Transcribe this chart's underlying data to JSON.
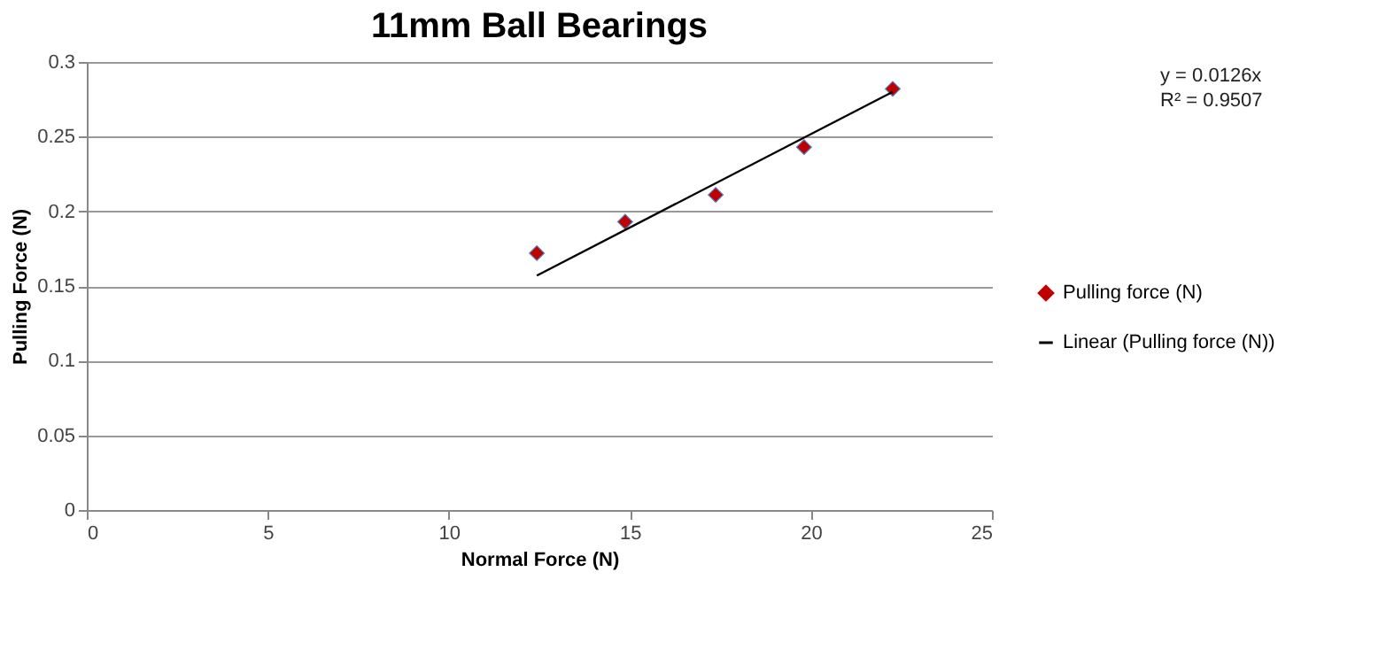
{
  "chart_data": {
    "type": "scatter",
    "title": "11mm Ball Bearings",
    "xlabel": "Normal Force (N)",
    "ylabel": "Pulling Force (N)",
    "series": [
      {
        "name": "Pulling force (N)",
        "color": "#c00000",
        "x": [
          12.43,
          14.87,
          17.37,
          19.81,
          22.26
        ],
        "values": [
          0.172,
          0.193,
          0.211,
          0.243,
          0.282
        ],
        "marker": "diamond"
      },
      {
        "name": "Linear (Pulling force (N))",
        "type": "line",
        "color": "#000000",
        "x": [
          12.43,
          22.26
        ],
        "values": [
          0.157,
          0.28
        ],
        "marker": "none",
        "line_style": "solid"
      }
    ],
    "xlim": [
      0,
      25
    ],
    "xticks": [
      0,
      5,
      10,
      15,
      20,
      25
    ],
    "ylim": [
      0,
      0.3
    ],
    "yticks": [
      0,
      0.05,
      0.1,
      0.15,
      0.2,
      0.25,
      0.3
    ],
    "grid": "y",
    "legend": "right",
    "annotations": [
      "y = 0.0126x",
      "R² = 0.9507"
    ]
  }
}
